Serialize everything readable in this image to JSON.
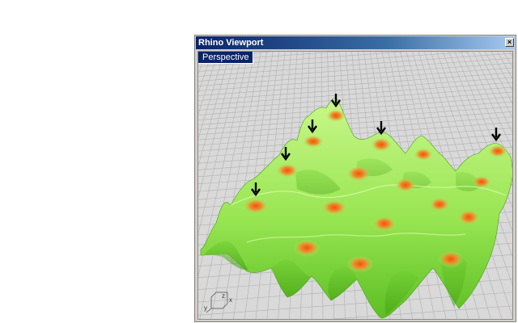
{
  "window": {
    "title": "Rhino Viewport",
    "close_glyph": "×"
  },
  "viewport": {
    "label": "Perspective",
    "axes": {
      "x": "x",
      "y": "y",
      "z": "z"
    }
  },
  "scene": {
    "surface_color": "#9be85a",
    "peak_color": "#f07a1a",
    "grid_background": "#d9d9d9",
    "grid_line_color": "#b0b0b0",
    "marker_icon": "down-arrow-icon"
  }
}
